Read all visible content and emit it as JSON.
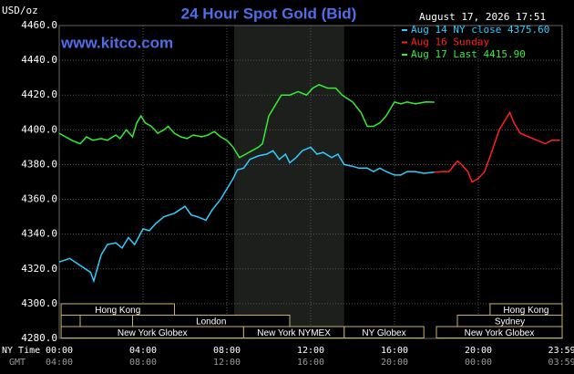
{
  "chart_data": {
    "type": "line",
    "title": "24 Hour Spot Gold (Bid)",
    "website": "www.kitco.com",
    "y_label": "USD/oz",
    "timestamp": "August 17, 2026 17:51",
    "x_label": "NY Time",
    "x2_label": "GMT",
    "background": "#000000",
    "grid": true,
    "shaded_x": [
      8.35,
      13.6
    ],
    "xlim": [
      0,
      24
    ],
    "xticks": [
      {
        "value": 0,
        "label": "00:00"
      },
      {
        "value": 4,
        "label": "04:00"
      },
      {
        "value": 8,
        "label": "08:00"
      },
      {
        "value": 12,
        "label": "12:00"
      },
      {
        "value": 16,
        "label": "16:00"
      },
      {
        "value": 20,
        "label": "20:00"
      },
      {
        "value": 23.983,
        "label": "23:59"
      }
    ],
    "x2ticks": [
      {
        "value": 0,
        "label": "04:00"
      },
      {
        "value": 4,
        "label": "08:00"
      },
      {
        "value": 8,
        "label": "12:00"
      },
      {
        "value": 12,
        "label": "16:00"
      },
      {
        "value": 16,
        "label": "20:00"
      },
      {
        "value": 20,
        "label": "00:00"
      },
      {
        "value": 23.983,
        "label": "03:59"
      }
    ],
    "ylim": [
      4280,
      4460
    ],
    "yticks": [
      {
        "value": 4280,
        "label": "4280.0"
      },
      {
        "value": 4300,
        "label": "4300.0"
      },
      {
        "value": 4320,
        "label": "4320.0"
      },
      {
        "value": 4340,
        "label": "4340.0"
      },
      {
        "value": 4360,
        "label": "4360.0"
      },
      {
        "value": 4380,
        "label": "4380.0"
      },
      {
        "value": 4400,
        "label": "4400.0"
      },
      {
        "value": 4420,
        "label": "4420.0"
      },
      {
        "value": 4440,
        "label": "4440.0"
      },
      {
        "value": 4460,
        "label": "4460.0"
      }
    ],
    "series": [
      {
        "name": "Aug 14 NY close 4375.60",
        "color": "#33ccff",
        "x": [
          0,
          0.5,
          1,
          1.5,
          1.65,
          2,
          2.3,
          2.7,
          3,
          3.3,
          3.6,
          4,
          4.3,
          4.6,
          5,
          5.5,
          6,
          6.3,
          6.6,
          7,
          7.3,
          7.7,
          8,
          8.3,
          8.5,
          8.8,
          9.1,
          9.5,
          9.9,
          10.2,
          10.5,
          10.8,
          11,
          11.3,
          11.6,
          12,
          12.3,
          12.6,
          13,
          13.3,
          13.6,
          14,
          14.3,
          14.7,
          15,
          15.3,
          15.6,
          16,
          16.3,
          16.6,
          17,
          17.4,
          17.9
        ],
        "values": [
          4324,
          4326,
          4322,
          4318,
          4313,
          4328,
          4334,
          4335,
          4332,
          4338,
          4334,
          4343,
          4342,
          4346,
          4350,
          4352,
          4356,
          4351,
          4350,
          4348,
          4354,
          4360,
          4366,
          4372,
          4377,
          4378,
          4383,
          4385,
          4386,
          4388,
          4383,
          4386,
          4381,
          4384,
          4388,
          4390,
          4386,
          4387,
          4384,
          4386,
          4380,
          4379,
          4378,
          4378,
          4376,
          4378,
          4376,
          4374,
          4374,
          4376,
          4376,
          4375,
          4375.6
        ]
      },
      {
        "name": "Aug 16 Sunday",
        "color": "#ff2020",
        "x": [
          17.9,
          18.3,
          18.6,
          19,
          19.2,
          19.5,
          19.7,
          20,
          20.3,
          20.6,
          21,
          21.3,
          21.5,
          21.7,
          22,
          22.4,
          22.8,
          23.2,
          23.5,
          23.9
        ],
        "values": [
          4375.6,
          4376,
          4376,
          4382,
          4380,
          4376,
          4370,
          4372,
          4376,
          4386,
          4400,
          4406,
          4410,
          4404,
          4398,
          4396,
          4394,
          4392,
          4394,
          4394
        ]
      },
      {
        "name": "Aug 17 Last 4415.90",
        "color": "#33ee33",
        "x": [
          0,
          0.3,
          0.6,
          1,
          1.3,
          1.6,
          2,
          2.3,
          2.7,
          2.9,
          3.2,
          3.5,
          3.7,
          3.9,
          4.1,
          4.4,
          4.7,
          5,
          5.2,
          5.5,
          5.8,
          6.1,
          6.4,
          6.8,
          7.1,
          7.4,
          7.7,
          8,
          8.3,
          8.6,
          8.9,
          9.2,
          9.5,
          9.7,
          10,
          10.3,
          10.6,
          11,
          11.4,
          11.8,
          12.1,
          12.4,
          12.8,
          13.2,
          13.5,
          14,
          14.4,
          14.7,
          15,
          15.3,
          15.6,
          16,
          16.3,
          16.6,
          17,
          17.5,
          17.9
        ],
        "values": [
          4398,
          4396,
          4394,
          4392,
          4396,
          4394,
          4395,
          4394,
          4397,
          4395,
          4400,
          4396,
          4404,
          4408,
          4404,
          4402,
          4398,
          4400,
          4402,
          4398,
          4396,
          4395,
          4397,
          4396,
          4397,
          4399,
          4396,
          4394,
          4390,
          4384,
          4386,
          4388,
          4390,
          4392,
          4408,
          4414,
          4420,
          4420,
          4422,
          4420,
          4424,
          4426,
          4424,
          4424,
          4420,
          4416,
          4410,
          4402,
          4402,
          4404,
          4408,
          4416,
          4415,
          4416,
          4415,
          4416,
          4415.9
        ]
      }
    ],
    "sessions": [
      {
        "label": "Hong Kong",
        "start": 0.09,
        "end": 5.5,
        "row": 0
      },
      {
        "label": "Hong Kong",
        "start": 20.56,
        "end": 24,
        "row": 0
      },
      {
        "label": null,
        "start": 0.09,
        "end": 1,
        "row": 1
      },
      {
        "label": "London",
        "start": 3.5,
        "end": 11,
        "row": 1
      },
      {
        "label": "Sydney",
        "start": 19,
        "end": 24,
        "row": 1
      },
      {
        "label": "New York Globex",
        "start": 0.09,
        "end": 8.8,
        "row": 2
      },
      {
        "label": "New York NYMEX",
        "start": 8.8,
        "end": 13.6,
        "row": 2
      },
      {
        "label": "NY Globex",
        "start": 13.6,
        "end": 17.4,
        "row": 2
      },
      {
        "label": "New York Globex",
        "start": 18,
        "end": 24,
        "row": 2
      }
    ]
  }
}
